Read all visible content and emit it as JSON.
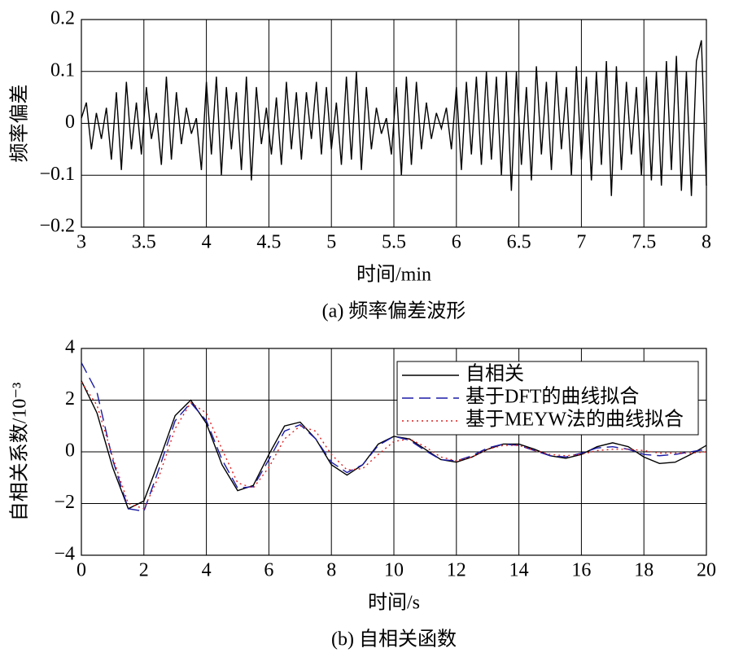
{
  "chart_data": [
    {
      "type": "line",
      "y_label": "频率偏差",
      "x_label": "时间/min",
      "caption": "(a) 频率偏差波形",
      "color": "#000000",
      "grid": true,
      "xlim": [
        3,
        8
      ],
      "ylim": [
        -0.2,
        0.2
      ],
      "xticks": [
        3,
        3.5,
        4,
        4.5,
        5,
        5.5,
        6,
        6.5,
        7,
        7.5,
        8
      ],
      "yticks": [
        {
          "value": -0.2,
          "label": "−0.2"
        },
        {
          "value": -0.1,
          "label": "−0.1"
        },
        0,
        0.1,
        0.2
      ],
      "x": [
        3,
        3.04,
        3.08,
        3.12,
        3.16,
        3.2,
        3.24,
        3.28,
        3.32,
        3.36,
        3.4,
        3.44,
        3.48,
        3.52,
        3.56,
        3.6,
        3.64,
        3.68,
        3.72,
        3.76,
        3.8,
        3.84,
        3.88,
        3.92,
        3.96,
        4,
        4.04,
        4.08,
        4.12,
        4.16,
        4.2,
        4.24,
        4.28,
        4.32,
        4.36,
        4.4,
        4.44,
        4.48,
        4.52,
        4.56,
        4.6,
        4.64,
        4.68,
        4.72,
        4.76,
        4.8,
        4.84,
        4.88,
        4.92,
        4.96,
        5,
        5.04,
        5.08,
        5.12,
        5.16,
        5.2,
        5.24,
        5.28,
        5.32,
        5.36,
        5.4,
        5.44,
        5.48,
        5.52,
        5.56,
        5.6,
        5.64,
        5.68,
        5.72,
        5.76,
        5.8,
        5.84,
        5.88,
        5.92,
        5.96,
        6,
        6.04,
        6.08,
        6.12,
        6.16,
        6.2,
        6.24,
        6.28,
        6.32,
        6.36,
        6.4,
        6.44,
        6.48,
        6.52,
        6.56,
        6.6,
        6.64,
        6.68,
        6.72,
        6.76,
        6.8,
        6.84,
        6.88,
        6.92,
        6.96,
        7,
        7.04,
        7.08,
        7.12,
        7.16,
        7.2,
        7.24,
        7.28,
        7.32,
        7.36,
        7.4,
        7.44,
        7.48,
        7.52,
        7.56,
        7.6,
        7.64,
        7.68,
        7.72,
        7.76,
        7.8,
        7.84,
        7.88,
        7.92,
        7.96,
        8
      ],
      "values": [
        0.01,
        0.04,
        -0.05,
        0.02,
        -0.03,
        0.03,
        -0.07,
        0.06,
        -0.09,
        0.08,
        -0.05,
        0.04,
        -0.06,
        0.07,
        -0.03,
        0.02,
        -0.08,
        0.09,
        -0.07,
        0.06,
        -0.04,
        0.03,
        -0.02,
        0.01,
        -0.09,
        0.08,
        -0.06,
        0.09,
        -0.1,
        0.07,
        -0.05,
        0.06,
        -0.09,
        0.09,
        -0.11,
        0.07,
        -0.04,
        0.03,
        -0.06,
        0.05,
        -0.08,
        0.08,
        -0.05,
        0.06,
        -0.07,
        0.06,
        -0.03,
        0.08,
        -0.06,
        0.07,
        -0.05,
        0.04,
        -0.08,
        0.09,
        -0.07,
        0.1,
        -0.09,
        0.07,
        -0.05,
        0.03,
        -0.02,
        0.01,
        -0.06,
        0.07,
        -0.1,
        0.09,
        -0.08,
        0.08,
        -0.05,
        0.04,
        -0.03,
        0.02,
        -0.01,
        0.03,
        -0.05,
        0.07,
        -0.09,
        0.08,
        -0.06,
        0.09,
        -0.08,
        0.1,
        -0.07,
        0.09,
        -0.1,
        0.1,
        -0.13,
        0.1,
        -0.08,
        0.07,
        -0.11,
        0.11,
        -0.06,
        0.08,
        -0.09,
        0.1,
        -0.05,
        0.07,
        -0.1,
        0.11,
        -0.07,
        0.09,
        -0.11,
        0.1,
        -0.08,
        0.12,
        -0.14,
        0.11,
        -0.09,
        0.08,
        -0.06,
        0.07,
        -0.1,
        0.09,
        -0.11,
        0.1,
        -0.12,
        0.12,
        -0.09,
        0.13,
        -0.13,
        0.1,
        -0.14,
        0.12,
        0.16,
        -0.12
      ]
    },
    {
      "type": "line",
      "y_label": "自相关系数/10⁻³",
      "x_label": "时间/s",
      "caption": "(b) 自相关函数",
      "grid": true,
      "legend": "upper right",
      "xlim": [
        0,
        20
      ],
      "ylim": [
        -4,
        4
      ],
      "xticks": [
        0,
        2,
        4,
        6,
        8,
        10,
        12,
        14,
        16,
        18,
        20
      ],
      "yticks": [
        {
          "value": -4,
          "label": "−4"
        },
        {
          "value": -2,
          "label": "−2"
        },
        0,
        2,
        4
      ],
      "x": [
        0,
        0.5,
        1,
        1.5,
        2,
        2.5,
        3,
        3.5,
        4,
        4.5,
        5,
        5.5,
        6,
        6.5,
        7,
        7.5,
        8,
        8.5,
        9,
        9.5,
        10,
        10.5,
        11,
        11.5,
        12,
        12.5,
        13,
        13.5,
        14,
        14.5,
        15,
        15.5,
        16,
        16.5,
        17,
        17.5,
        18,
        18.5,
        19,
        19.5,
        20
      ],
      "series": [
        {
          "name": "自相关",
          "color": "#000000",
          "linestyle": "solid",
          "values": [
            2.75,
            1.5,
            -0.6,
            -2.2,
            -1.9,
            -0.3,
            1.4,
            2.0,
            1.1,
            -0.5,
            -1.5,
            -1.3,
            -0.1,
            1.0,
            1.15,
            0.5,
            -0.5,
            -0.9,
            -0.5,
            0.3,
            0.6,
            0.5,
            0.1,
            -0.3,
            -0.4,
            -0.2,
            0.1,
            0.3,
            0.3,
            0.1,
            -0.15,
            -0.25,
            -0.1,
            0.2,
            0.35,
            0.2,
            -0.2,
            -0.45,
            -0.4,
            -0.1,
            0.25
          ]
        },
        {
          "name": "基于DFT的曲线拟合",
          "color": "#1a1aa6",
          "linestyle": "dashed",
          "values": [
            3.45,
            2.3,
            -0.3,
            -2.2,
            -2.3,
            -0.6,
            1.2,
            1.9,
            1.2,
            -0.3,
            -1.4,
            -1.35,
            -0.3,
            0.8,
            1.05,
            0.5,
            -0.4,
            -0.8,
            -0.5,
            0.25,
            0.6,
            0.45,
            0.05,
            -0.3,
            -0.35,
            -0.15,
            0.15,
            0.3,
            0.25,
            0.05,
            -0.15,
            -0.2,
            -0.05,
            0.15,
            0.2,
            0.1,
            -0.1,
            -0.15,
            -0.1,
            0.0,
            0.1
          ]
        },
        {
          "name": "基于MEYW法的曲线拟合",
          "color": "#e02020",
          "linestyle": "dotted",
          "values": [
            2.7,
            1.8,
            -0.2,
            -2.0,
            -2.2,
            -0.9,
            0.9,
            1.9,
            1.5,
            0.1,
            -1.2,
            -1.4,
            -0.6,
            0.5,
            1.0,
            0.8,
            -0.1,
            -0.7,
            -0.65,
            -0.1,
            0.4,
            0.5,
            0.2,
            -0.2,
            -0.35,
            -0.2,
            0.1,
            0.25,
            0.25,
            0.05,
            -0.1,
            -0.15,
            -0.1,
            0.05,
            0.1,
            0.1,
            0.05,
            -0.05,
            -0.05,
            -0.05,
            0.0
          ]
        }
      ]
    }
  ]
}
